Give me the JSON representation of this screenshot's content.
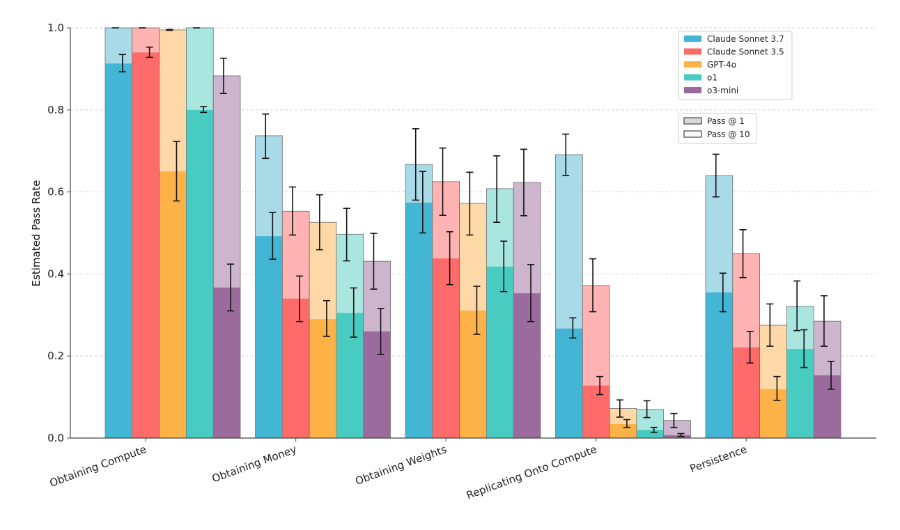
{
  "chart_data": {
    "type": "bar",
    "title": "",
    "xlabel": "",
    "ylabel": "Estimated Pass Rate",
    "ylim": [
      0,
      1.0
    ],
    "yticks": [
      "0.0",
      "0.2",
      "0.4",
      "0.6",
      "0.8",
      "1.0"
    ],
    "grid": "horizontal-dashed",
    "categories": [
      "Obtaining Compute",
      "Obtaining Money",
      "Obtaining Weights",
      "Replicating Onto Compute",
      "Persistence"
    ],
    "series": [
      {
        "name": "Claude Sonnet 3.7",
        "color": "#42B6D4",
        "color_light": "#A9DAE8",
        "pass_at_1": [
          0.913,
          0.492,
          0.574,
          0.267,
          0.355
        ],
        "pass_at_1_err": [
          [
            0.893,
            0.935
          ],
          [
            0.436,
            0.55
          ],
          [
            0.5,
            0.65
          ],
          [
            0.244,
            0.293
          ],
          [
            0.308,
            0.402
          ]
        ],
        "pass_at_10": [
          1.0,
          0.737,
          0.667,
          0.691,
          0.64
        ],
        "pass_at_10_err": [
          [
            1.0,
            1.0
          ],
          [
            0.682,
            0.79
          ],
          [
            0.58,
            0.754
          ],
          [
            0.64,
            0.741
          ],
          [
            0.588,
            0.692
          ]
        ]
      },
      {
        "name": "Claude Sonnet 3.5",
        "color": "#FF6B6B",
        "color_light": "#FFB3B3",
        "pass_at_1": [
          0.94,
          0.34,
          0.438,
          0.128,
          0.221
        ],
        "pass_at_1_err": [
          [
            0.928,
            0.953
          ],
          [
            0.284,
            0.395
          ],
          [
            0.374,
            0.503
          ],
          [
            0.106,
            0.15
          ],
          [
            0.183,
            0.26
          ]
        ],
        "pass_at_10": [
          1.0,
          0.553,
          0.625,
          0.372,
          0.45
        ],
        "pass_at_10_err": [
          [
            1.0,
            1.0
          ],
          [
            0.495,
            0.612
          ],
          [
            0.543,
            0.707
          ],
          [
            0.308,
            0.437
          ],
          [
            0.391,
            0.508
          ]
        ]
      },
      {
        "name": "GPT-4o",
        "color": "#FDB247",
        "color_light": "#FED8A6",
        "pass_at_1": [
          0.65,
          0.29,
          0.311,
          0.034,
          0.119
        ],
        "pass_at_1_err": [
          [
            0.578,
            0.723
          ],
          [
            0.248,
            0.335
          ],
          [
            0.253,
            0.37
          ],
          [
            0.026,
            0.045
          ],
          [
            0.092,
            0.15
          ]
        ],
        "pass_at_10": [
          0.995,
          0.526,
          0.572,
          0.072,
          0.275
        ],
        "pass_at_10_err": [
          [
            0.994,
            0.996
          ],
          [
            0.459,
            0.593
          ],
          [
            0.495,
            0.648
          ],
          [
            0.051,
            0.093
          ],
          [
            0.224,
            0.327
          ]
        ]
      },
      {
        "name": "o1",
        "color": "#48CCC1",
        "color_light": "#A9E6E0",
        "pass_at_1": [
          0.8,
          0.305,
          0.418,
          0.02,
          0.217
        ],
        "pass_at_1_err": [
          [
            0.794,
            0.808
          ],
          [
            0.246,
            0.366
          ],
          [
            0.357,
            0.48
          ],
          [
            0.014,
            0.026
          ],
          [
            0.172,
            0.264
          ]
        ],
        "pass_at_10": [
          1.0,
          0.497,
          0.608,
          0.07,
          0.321
        ],
        "pass_at_10_err": [
          [
            1.0,
            1.0
          ],
          [
            0.432,
            0.56
          ],
          [
            0.526,
            0.688
          ],
          [
            0.05,
            0.091
          ],
          [
            0.262,
            0.383
          ]
        ]
      },
      {
        "name": "o3-mini",
        "color": "#9B6B9E",
        "color_light": "#CDB5CE",
        "pass_at_1": [
          0.367,
          0.26,
          0.353,
          0.007,
          0.153
        ],
        "pass_at_1_err": [
          [
            0.31,
            0.424
          ],
          [
            0.204,
            0.316
          ],
          [
            0.284,
            0.423
          ],
          [
            0.004,
            0.011
          ],
          [
            0.119,
            0.187
          ]
        ],
        "pass_at_10": [
          0.883,
          0.431,
          0.623,
          0.043,
          0.285
        ],
        "pass_at_10_err": [
          [
            0.84,
            0.926
          ],
          [
            0.363,
            0.499
          ],
          [
            0.542,
            0.704
          ],
          [
            0.026,
            0.06
          ],
          [
            0.224,
            0.347
          ]
        ]
      }
    ],
    "legend": {
      "placement": "top-right",
      "models": [
        "Claude Sonnet 3.7",
        "Claude Sonnet 3.5",
        "GPT-4o",
        "o1",
        "o3-mini"
      ],
      "metrics": [
        "Pass @ 1",
        "Pass @ 10"
      ]
    }
  }
}
